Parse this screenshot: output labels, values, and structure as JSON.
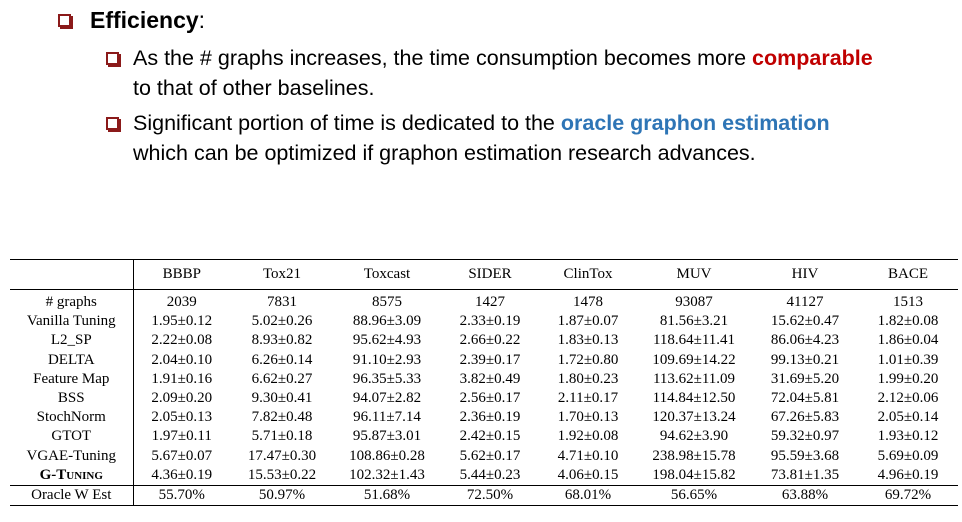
{
  "heading": {
    "bold": "Efficiency",
    "rest": ":"
  },
  "bullets": [
    {
      "segments": [
        {
          "text": "As the # graphs increases, the time consumption becomes more "
        },
        {
          "text": "comparable",
          "color": "#c00000"
        },
        {
          "text": " to that of other baselines."
        }
      ]
    },
    {
      "segments": [
        {
          "text": "Significant portion of time is dedicated to the "
        },
        {
          "text": "oracle graphon estimation",
          "color": "#2e75b6"
        },
        {
          "text": " which can be optimized if graphon estimation research advances."
        }
      ]
    }
  ],
  "table": {
    "columns": [
      "BBBP",
      "Tox21",
      "Toxcast",
      "SIDER",
      "ClinTox",
      "MUV",
      "HIV",
      "BACE"
    ],
    "rows": [
      {
        "label": "# graphs",
        "cells": [
          "2039",
          "7831",
          "8575",
          "1427",
          "1478",
          "93087",
          "41127",
          "1513"
        ]
      },
      {
        "label": "Vanilla Tuning",
        "cells": [
          "1.95±0.12",
          "5.02±0.26",
          "88.96±3.09",
          "2.33±0.19",
          "1.87±0.07",
          "81.56±3.21",
          "15.62±0.47",
          "1.82±0.08"
        ]
      },
      {
        "label": "L2_SP",
        "cells": [
          "2.22±0.08",
          "8.93±0.82",
          "95.62±4.93",
          "2.66±0.22",
          "1.83±0.13",
          "118.64±11.41",
          "86.06±4.23",
          "1.86±0.04"
        ]
      },
      {
        "label": "DELTA",
        "cells": [
          "2.04±0.10",
          "6.26±0.14",
          "91.10±2.93",
          "2.39±0.17",
          "1.72±0.80",
          "109.69±14.22",
          "99.13±0.21",
          "1.01±0.39"
        ]
      },
      {
        "label": "Feature Map",
        "cells": [
          "1.91±0.16",
          "6.62±0.27",
          "96.35±5.33",
          "3.82±0.49",
          "1.80±0.23",
          "113.62±11.09",
          "31.69±5.20",
          "1.99±0.20"
        ]
      },
      {
        "label": "BSS",
        "cells": [
          "2.09±0.20",
          "9.30±0.41",
          "94.07±2.82",
          "2.56±0.17",
          "2.11±0.17",
          "114.84±12.50",
          "72.04±5.81",
          "2.12±0.06"
        ]
      },
      {
        "label": "StochNorm",
        "cells": [
          "2.05±0.13",
          "7.82±0.48",
          "96.11±7.14",
          "2.36±0.19",
          "1.70±0.13",
          "120.37±13.24",
          "67.26±5.83",
          "2.05±0.14"
        ]
      },
      {
        "label": "GTOT",
        "cells": [
          "1.97±0.11",
          "5.71±0.18",
          "95.87±3.01",
          "2.42±0.15",
          "1.92±0.08",
          "94.62±3.90",
          "59.32±0.97",
          "1.93±0.12"
        ]
      },
      {
        "label": "VGAE-Tuning",
        "cells": [
          "5.67±0.07",
          "17.47±0.30",
          "108.86±0.28",
          "5.62±0.17",
          "4.71±0.10",
          "238.98±15.78",
          "95.59±3.68",
          "5.69±0.09"
        ]
      },
      {
        "label": "G-Tuning",
        "cells": [
          "4.36±0.19",
          "15.53±0.22",
          "102.32±1.43",
          "5.44±0.23",
          "4.06±0.15",
          "198.04±15.82",
          "73.81±1.35",
          "4.96±0.19"
        ]
      },
      {
        "label": "Oracle W Est",
        "cells": [
          "55.70%",
          "50.97%",
          "51.68%",
          "72.50%",
          "68.01%",
          "56.65%",
          "63.88%",
          "69.72%"
        ]
      }
    ]
  }
}
